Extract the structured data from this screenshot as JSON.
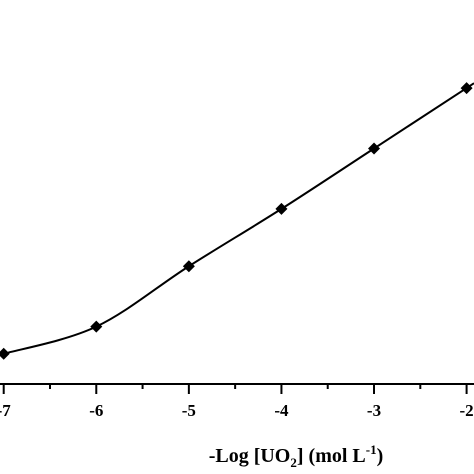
{
  "chart_data": {
    "type": "line",
    "title": "",
    "xlabel": {
      "prefix": "-Log [UO",
      "subscript": "2",
      "middle": "] (mol L",
      "superscript": "-1",
      "suffix": ")"
    },
    "ylabel": "",
    "x_tick_labels": [
      "-7",
      "-6",
      "-5",
      "-4",
      "-3",
      "-2"
    ],
    "x_tick_values": [
      -7,
      -6,
      -5,
      -4,
      -3,
      -2
    ],
    "series": [
      {
        "marker": "diamond",
        "color": "#000000",
        "x": [
          -7,
          -6,
          -5,
          -4,
          -3,
          -2
        ],
        "y": [
          0.045,
          0.31,
          0.9,
          1.46,
          2.05,
          2.64
        ]
      }
    ],
    "y_visible_range": [
      -0.25,
      3.5
    ],
    "x_visible_range": [
      -7.04,
      -1.92
    ],
    "grid": false,
    "legend": "none"
  }
}
